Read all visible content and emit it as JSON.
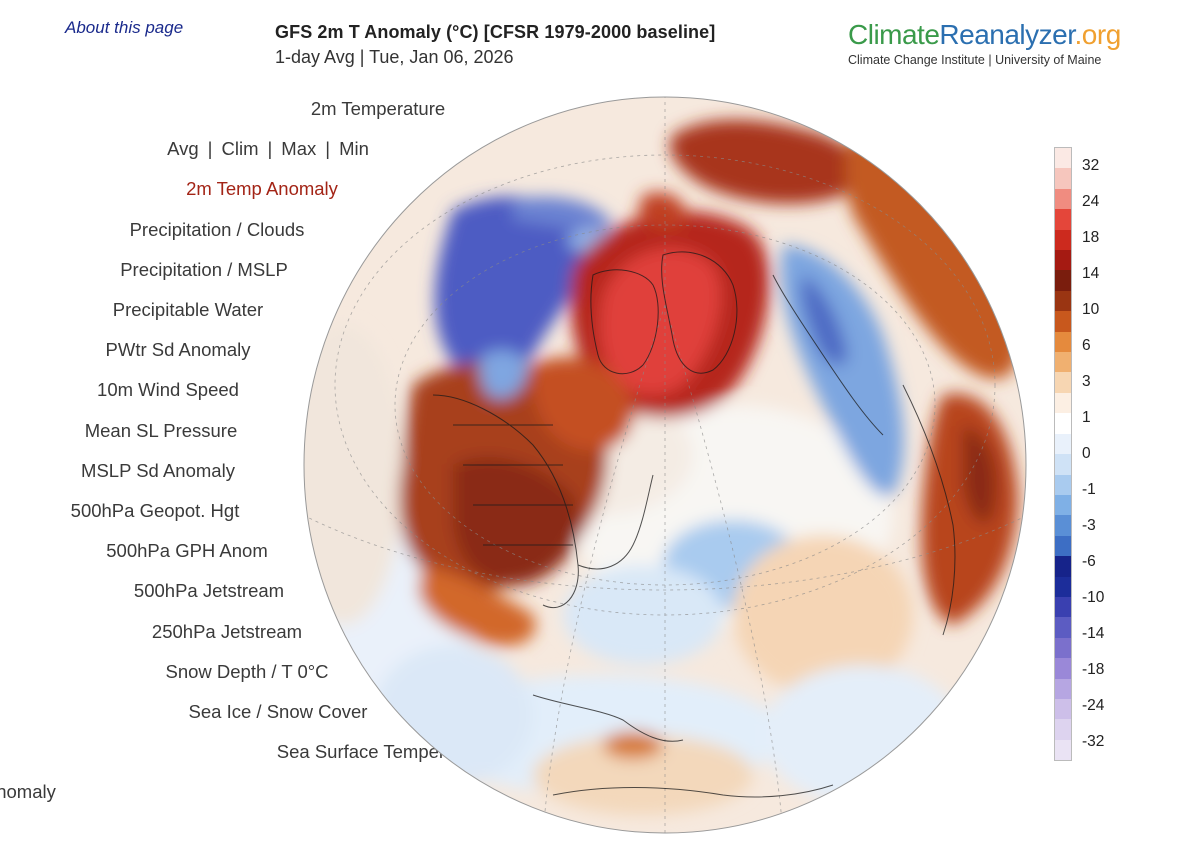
{
  "about_link": "About this page",
  "header": {
    "title": "GFS 2m T Anomaly (°C) [CFSR 1979-2000 baseline]",
    "subtitle": "1-day Avg | Tue, Jan 06, 2026"
  },
  "logo": {
    "part1": "Climate",
    "part2": "Reanalyzer",
    "part3": ".org",
    "subtitle": "Climate Change Institute | University of Maine",
    "colors": {
      "climate": "#3a9a4a",
      "reanalyzer": "#2b6fb0",
      "org": "#f0a030"
    }
  },
  "menu": {
    "temperature": "2m Temperature",
    "sub_options": [
      "Avg",
      "Clim",
      "Max",
      "Min"
    ],
    "separator": "|",
    "items": [
      "2m Temp Anomaly",
      "Precipitation / Clouds",
      "Precipitation / MSLP",
      "Precipitable Water",
      "PWtr Sd Anomaly",
      "10m Wind Speed",
      "Mean SL Pressure",
      "MSLP Sd Anomaly",
      "500hPa Geopot. Hgt",
      "500hPa GPH Anom",
      "500hPa Jetstream",
      "250hPa Jetstream",
      "Snow Depth / T 0°C",
      "Sea Ice / Snow Cover",
      "Sea Surface Temperature",
      "SST Anomaly"
    ],
    "active_item": "2m Temp Anomaly",
    "active_color": "#a32416"
  },
  "legend": {
    "tick_labels": [
      "32",
      "24",
      "18",
      "14",
      "10",
      "6",
      "3",
      "1",
      "0",
      "-1",
      "-3",
      "-6",
      "-10",
      "-14",
      "-18",
      "-24",
      "-32"
    ],
    "colors": [
      "#fbe9e4",
      "#f6c6bd",
      "#f08c80",
      "#e4463a",
      "#cc2a1e",
      "#a51a12",
      "#7a1d0d",
      "#9a3512",
      "#c8581d",
      "#e58a3d",
      "#f0b070",
      "#f7d6b2",
      "#fcefe3",
      "#ffffff",
      "#e9f1fb",
      "#cfe2f6",
      "#a9cbef",
      "#7fb0e6",
      "#5a8fd6",
      "#3d6ec4",
      "#16238a",
      "#1c2d9a",
      "#3a40b0",
      "#5c5cc2",
      "#7b70cc",
      "#9a88d8",
      "#b6a6e2",
      "#cdbfe9",
      "#ddd3ef",
      "#eae3f4"
    ]
  }
}
